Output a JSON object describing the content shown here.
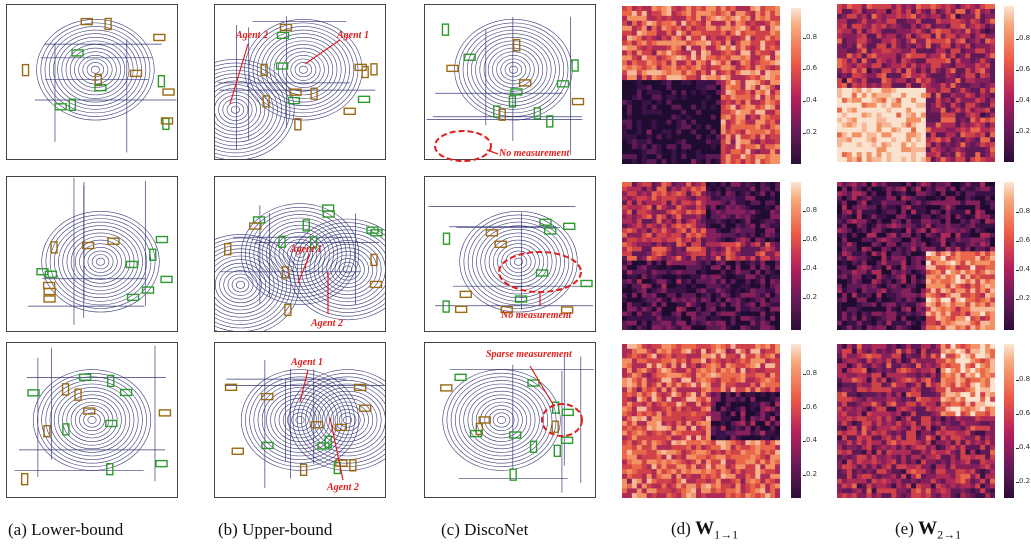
{
  "captions": {
    "a": "(a) Lower-bound",
    "b": "(b) Upper-bound",
    "c": "(c) DiscoNet",
    "d_prefix": "(d)",
    "d_w": "W",
    "d_sub": "1→1",
    "e_prefix": "(e)",
    "e_w": "W",
    "e_sub": "2→1"
  },
  "annotations": {
    "agent1": "Agent 1",
    "agent2": "Agent 2",
    "no_measurement": "No measurement",
    "sparse_measurement": "Sparse measurement"
  },
  "colorbar_ticks": [
    "0.8",
    "0.6",
    "0.4",
    "0.2"
  ],
  "colors": {
    "gt_box": "#2c9a2c",
    "pred_box": "#9a6a14",
    "annotation": "#e0201d",
    "point_cloud": "#3a3a7a"
  }
}
